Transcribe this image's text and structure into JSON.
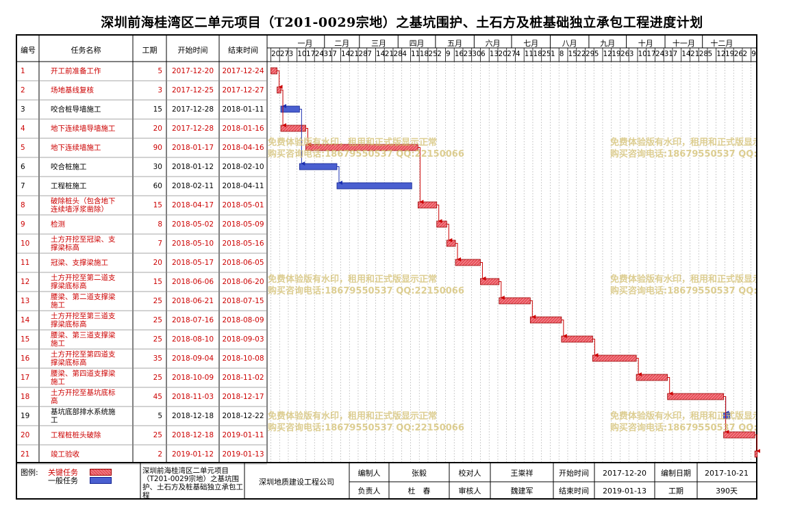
{
  "title": "深圳前海桂湾区二单元项目（T201-0029宗地）之基坑围护、土石方及桩基础独立承包工程进度计划",
  "columns": {
    "id": "编号",
    "name": "任务名称",
    "duration": "工期",
    "start": "开始时间",
    "end": "结束时间"
  },
  "months": [
    "一月",
    "二月",
    "三月",
    "四月",
    "五月",
    "六月",
    "七月",
    "八月",
    "九月",
    "十月",
    "十一月",
    "十二月"
  ],
  "weeks": [
    "20",
    "27",
    "3",
    "10",
    "17",
    "24",
    "31",
    "7",
    "14",
    "21",
    "28",
    "7",
    "14",
    "21",
    "28",
    "4",
    "11",
    "18",
    "25",
    "2",
    "9",
    "16",
    "23",
    "30",
    "6",
    "13",
    "20",
    "27",
    "4",
    "11",
    "18",
    "25",
    "1",
    "8",
    "15",
    "22",
    "29",
    "5",
    "12",
    "19",
    "26",
    "3",
    "10",
    "17",
    "24",
    "31",
    "7",
    "14",
    "21",
    "28",
    "5",
    "12",
    "19",
    "26",
    "2",
    "9"
  ],
  "tasks": [
    {
      "id": "1",
      "name": "开工前准备工作",
      "dur": "5",
      "start": "2017-12-20",
      "end": "2017-12-24",
      "critical": true
    },
    {
      "id": "2",
      "name": "场地基线复核",
      "dur": "3",
      "start": "2017-12-25",
      "end": "2017-12-27",
      "critical": true
    },
    {
      "id": "3",
      "name": "咬合桩导墙施工",
      "dur": "15",
      "start": "2017-12-28",
      "end": "2018-01-11",
      "critical": false
    },
    {
      "id": "4",
      "name": "地下连续墙导墙施工",
      "dur": "20",
      "start": "2017-12-28",
      "end": "2018-01-16",
      "critical": true
    },
    {
      "id": "5",
      "name": "地下连续墙施工",
      "dur": "90",
      "start": "2018-01-17",
      "end": "2018-04-16",
      "critical": true
    },
    {
      "id": "6",
      "name": "咬合桩施工",
      "dur": "30",
      "start": "2018-01-12",
      "end": "2018-02-10",
      "critical": false
    },
    {
      "id": "7",
      "name": "工程桩施工",
      "dur": "60",
      "start": "2018-02-11",
      "end": "2018-04-11",
      "critical": false
    },
    {
      "id": "8",
      "name": "破除桩头（包含地下|连续墙浮浆凿除）",
      "dur": "15",
      "start": "2018-04-17",
      "end": "2018-05-01",
      "critical": true
    },
    {
      "id": "9",
      "name": "检测",
      "dur": "8",
      "start": "2018-05-02",
      "end": "2018-05-09",
      "critical": true
    },
    {
      "id": "10",
      "name": "土方开挖至冠梁、支|撑梁标高",
      "dur": "7",
      "start": "2018-05-10",
      "end": "2018-05-16",
      "critical": true
    },
    {
      "id": "11",
      "name": "冠梁、支撑梁施工",
      "dur": "20",
      "start": "2018-05-17",
      "end": "2018-06-05",
      "critical": true
    },
    {
      "id": "12",
      "name": "土方开挖至第二道支|撑梁底标高",
      "dur": "15",
      "start": "2018-06-06",
      "end": "2018-06-20",
      "critical": true
    },
    {
      "id": "13",
      "name": "腰梁、第二道支撑梁|施工",
      "dur": "25",
      "start": "2018-06-21",
      "end": "2018-07-15",
      "critical": true
    },
    {
      "id": "14",
      "name": "土方开挖至第三道支|撑梁底标高",
      "dur": "25",
      "start": "2018-07-16",
      "end": "2018-08-09",
      "critical": true
    },
    {
      "id": "15",
      "name": "腰梁、第三道支撑梁|施工",
      "dur": "25",
      "start": "2018-08-10",
      "end": "2018-09-03",
      "critical": true
    },
    {
      "id": "16",
      "name": "土方开挖至第四道支|撑梁底标高",
      "dur": "35",
      "start": "2018-09-04",
      "end": "2018-10-08",
      "critical": true
    },
    {
      "id": "17",
      "name": "腰梁、第四道支撑梁|施工",
      "dur": "25",
      "start": "2018-10-09",
      "end": "2018-11-02",
      "critical": true
    },
    {
      "id": "18",
      "name": "土方开挖至基坑底标|高",
      "dur": "45",
      "start": "2018-11-03",
      "end": "2018-12-17",
      "critical": true
    },
    {
      "id": "19",
      "name": "基坑底部排水系统施|工",
      "dur": "5",
      "start": "2018-12-18",
      "end": "2018-12-22",
      "critical": false
    },
    {
      "id": "20",
      "name": "工程桩桩头破除",
      "dur": "25",
      "start": "2018-12-18",
      "end": "2019-01-11",
      "critical": true
    },
    {
      "id": "21",
      "name": "竣工验收",
      "dur": "2",
      "start": "2019-01-12",
      "end": "2019-01-13",
      "critical": true
    }
  ],
  "links": [
    [
      1,
      2
    ],
    [
      2,
      3
    ],
    [
      2,
      4
    ],
    [
      4,
      5
    ],
    [
      3,
      6
    ],
    [
      6,
      7
    ],
    [
      5,
      8
    ],
    [
      8,
      9
    ],
    [
      9,
      10
    ],
    [
      10,
      11
    ],
    [
      11,
      12
    ],
    [
      12,
      13
    ],
    [
      13,
      14
    ],
    [
      14,
      15
    ],
    [
      15,
      16
    ],
    [
      16,
      17
    ],
    [
      17,
      18
    ],
    [
      18,
      19
    ],
    [
      18,
      20
    ],
    [
      20,
      21
    ]
  ],
  "watermark": {
    "line1": "免费体验版有水印，租用和正式版显示正常",
    "line2": "购买咨询电话:18679550537 QQ:22150066"
  },
  "footer": {
    "legend_label": "图例:",
    "legend_critical": "关键任务",
    "legend_normal": "一般任务",
    "project_name": "深圳前海桂湾区二单元项目（T201-0029宗地）之基坑围护、土石方及桩基础独立承包工程",
    "company": "深圳地质建设工程公司",
    "editor_label": "编制人",
    "editor": "张毅",
    "checker_label": "校对人",
    "checker": "王粜祥",
    "start_label": "开始时间",
    "start": "2017-12-20",
    "date_label": "编制日期",
    "date": "2017-10-21",
    "manager_label": "负责人",
    "manager": "杜　春",
    "reviewer_label": "审核人",
    "reviewer": "魏建军",
    "end_label": "结束时间",
    "end": "2019-01-13",
    "period_label": "工期",
    "period": "390天"
  },
  "colors": {
    "critical": "#e8505a",
    "critical_text": "#cc0000",
    "normal": "#4a5fd0",
    "critical_line": "#cc0000",
    "normal_line": "#1a2fb0"
  }
}
